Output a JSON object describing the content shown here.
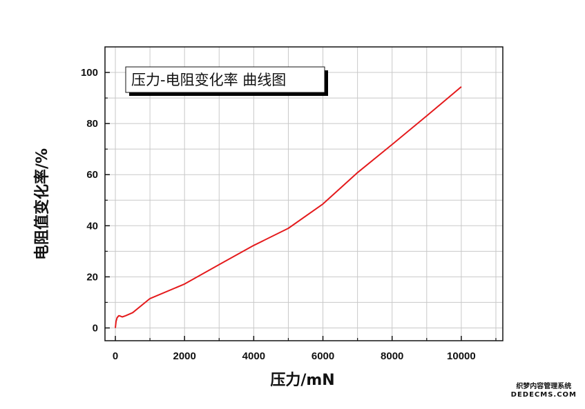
{
  "chart_data": {
    "type": "line",
    "title": "压力-电阻变化率 曲线图",
    "xlabel": "压力/mN",
    "ylabel": "电阻值变化率/%",
    "xlim": [
      -300,
      11200
    ],
    "ylim": [
      -5,
      110
    ],
    "xticks": [
      0,
      2000,
      4000,
      6000,
      8000,
      10000
    ],
    "yticks": [
      0,
      20,
      40,
      60,
      80,
      100
    ],
    "grid": true,
    "legend": "none",
    "series": [
      {
        "color": "#e41a1c",
        "x": [
          0,
          20,
          50,
          100,
          150,
          200,
          300,
          500,
          1000,
          2000,
          3000,
          4000,
          5000,
          6000,
          7000,
          8000,
          9000,
          10000
        ],
        "y": [
          0,
          2.5,
          4.0,
          4.8,
          4.6,
          4.3,
          4.8,
          6.0,
          11.5,
          17.2,
          24.8,
          32.3,
          39.0,
          48.5,
          60.8,
          71.8,
          83.0,
          94.4
        ]
      }
    ]
  },
  "watermark": {
    "line1": "织梦内容管理系统",
    "line2": "DEDECMS.COM"
  }
}
